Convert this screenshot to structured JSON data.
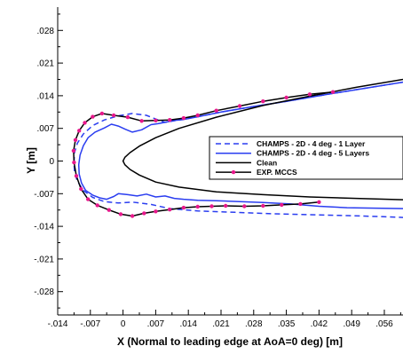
{
  "chart_data": {
    "type": "line",
    "xlabel": "X (Normal to leading edge at AoA=0 deg) [m]",
    "ylabel": "Y [m]",
    "xlim": [
      -0.014,
      0.06
    ],
    "ylim": [
      -0.033,
      0.033
    ],
    "x_ticks": [
      {
        "value": -0.014,
        "label": "-.014"
      },
      {
        "value": -0.007,
        "label": "-.007"
      },
      {
        "value": 0,
        "label": "0"
      },
      {
        "value": 0.007,
        "label": ".007"
      },
      {
        "value": 0.014,
        "label": ".014"
      },
      {
        "value": 0.021,
        "label": ".021"
      },
      {
        "value": 0.028,
        "label": ".028"
      },
      {
        "value": 0.035,
        "label": ".035"
      },
      {
        "value": 0.042,
        "label": ".042"
      },
      {
        "value": 0.049,
        "label": ".049"
      },
      {
        "value": 0.056,
        "label": ".056"
      }
    ],
    "y_ticks": [
      {
        "value": 0.028,
        "label": ".028"
      },
      {
        "value": 0.021,
        "label": ".021"
      },
      {
        "value": 0.014,
        "label": ".014"
      },
      {
        "value": 0.007,
        "label": ".007"
      },
      {
        "value": 0,
        "label": "0"
      },
      {
        "value": -0.007,
        "label": "-.007"
      },
      {
        "value": -0.014,
        "label": "-.014"
      },
      {
        "value": -0.021,
        "label": "-.021"
      },
      {
        "value": -0.028,
        "label": "-.028"
      }
    ],
    "grid": false,
    "legend_position": "right",
    "series": [
      {
        "name": "CHAMPS - 2D - 4 deg - 1 Layer",
        "color": "#2a3df0",
        "style": "dashed",
        "x": [
          0.06,
          0.045,
          0.035,
          0.028,
          0.021,
          0.016,
          0.012,
          0.009,
          0.0075,
          0.005,
          0.002,
          -0.001,
          -0.004,
          -0.0065,
          -0.0085,
          -0.0098,
          -0.0104,
          -0.0105,
          -0.0104,
          -0.0098,
          -0.0085,
          -0.0065,
          -0.004,
          -0.001,
          0.002,
          0.006,
          0.01,
          0.016,
          0.024,
          0.032,
          0.04,
          0.048,
          0.055,
          0.06
        ],
        "y": [
          0.0169,
          0.0145,
          0.0128,
          0.0117,
          0.0105,
          0.0095,
          0.0088,
          0.0083,
          0.0088,
          0.0098,
          0.0102,
          0.0097,
          0.0088,
          0.0076,
          0.0058,
          0.0038,
          0.0018,
          -0.0003,
          -0.0023,
          -0.0043,
          -0.0063,
          -0.0078,
          -0.0087,
          -0.009,
          -0.0088,
          -0.0093,
          -0.0102,
          -0.0107,
          -0.011,
          -0.0113,
          -0.0115,
          -0.0117,
          -0.0119,
          -0.0121
        ]
      },
      {
        "name": "CHAMPS - 2D - 4 deg - 5 Layers",
        "color": "#2a3df0",
        "style": "solid",
        "x": [
          0.06,
          0.045,
          0.035,
          0.028,
          0.021,
          0.016,
          0.013,
          0.011,
          0.009,
          0.0075,
          0.006,
          0.004,
          0.002,
          0.0005,
          -0.001,
          -0.0025,
          -0.004,
          -0.006,
          -0.0075,
          -0.0085,
          -0.0092,
          -0.0095,
          -0.0094,
          -0.0089,
          -0.008,
          -0.0065,
          -0.005,
          -0.0035,
          -0.002,
          -0.001,
          0.001,
          0.003,
          0.005,
          0.007,
          0.009,
          0.011,
          0.013,
          0.016,
          0.02,
          0.025,
          0.03,
          0.036,
          0.042,
          0.048,
          0.054,
          0.06
        ],
        "y": [
          0.0169,
          0.0145,
          0.0128,
          0.0117,
          0.0105,
          0.0095,
          0.0089,
          0.0087,
          0.0083,
          0.008,
          0.0078,
          0.0067,
          0.0062,
          0.0068,
          0.0075,
          0.0079,
          0.0071,
          0.0062,
          0.005,
          0.0033,
          0.0013,
          -0.0008,
          -0.0028,
          -0.0047,
          -0.0063,
          -0.0073,
          -0.0079,
          -0.0082,
          -0.0076,
          -0.007,
          -0.0072,
          -0.0075,
          -0.0071,
          -0.0077,
          -0.0075,
          -0.008,
          -0.0082,
          -0.0084,
          -0.0085,
          -0.0087,
          -0.0089,
          -0.0092,
          -0.0097,
          -0.01,
          -0.0101,
          -0.0102
        ]
      },
      {
        "name": "Clean",
        "color": "#000000",
        "style": "solid",
        "x": [
          0.06,
          0.05,
          0.04,
          0.03,
          0.02,
          0.012,
          0.007,
          0.0035,
          0.0015,
          0.0004,
          0.0,
          0.0004,
          0.0015,
          0.0035,
          0.007,
          0.012,
          0.02,
          0.03,
          0.04,
          0.05,
          0.06
        ],
        "y": [
          0.0175,
          0.0158,
          0.0139,
          0.0119,
          0.0094,
          0.007,
          0.005,
          0.0032,
          0.0018,
          0.0008,
          0.0,
          -0.0008,
          -0.0018,
          -0.003,
          -0.0045,
          -0.0056,
          -0.0066,
          -0.0072,
          -0.0077,
          -0.008,
          -0.0083
        ]
      },
      {
        "name": "EXP. MCCS",
        "color": "#000000",
        "style": "solid",
        "marker_color": "#e8188c",
        "x": [
          0.045,
          0.04,
          0.035,
          0.03,
          0.025,
          0.02,
          0.016,
          0.013,
          0.01,
          0.007,
          0.004,
          0.001,
          -0.002,
          -0.0045,
          -0.0065,
          -0.0082,
          -0.0094,
          -0.0102,
          -0.0106,
          -0.0105,
          -0.01,
          -0.009,
          -0.0075,
          -0.0055,
          -0.003,
          -0.0005,
          0.002,
          0.0045,
          0.007,
          0.01,
          0.013,
          0.016,
          0.019,
          0.022,
          0.026,
          0.03,
          0.034,
          0.038,
          0.042
        ],
        "y": [
          0.0148,
          0.0143,
          0.0136,
          0.0128,
          0.0118,
          0.0108,
          0.0098,
          0.0092,
          0.0088,
          0.0087,
          0.0086,
          0.0094,
          0.0098,
          0.0102,
          0.0095,
          0.0082,
          0.0065,
          0.0045,
          0.0022,
          -0.0003,
          -0.0032,
          -0.006,
          -0.0082,
          -0.0095,
          -0.0105,
          -0.0114,
          -0.0118,
          -0.0112,
          -0.0108,
          -0.0104,
          -0.01,
          -0.0098,
          -0.0097,
          -0.0096,
          -0.0097,
          -0.0096,
          -0.0094,
          -0.0092,
          -0.0088
        ]
      }
    ]
  }
}
